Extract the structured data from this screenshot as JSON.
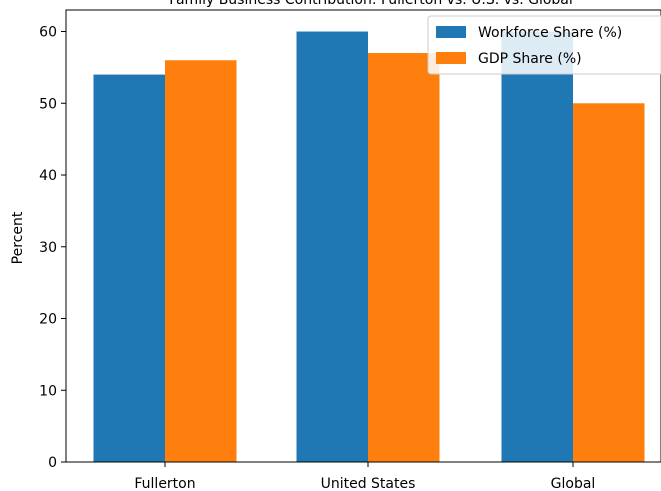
{
  "chart_data": {
    "type": "bar",
    "title": "Family Business Contribution: Fullerton vs. U.S. vs. Global",
    "xlabel": "",
    "ylabel": "Percent",
    "categories": [
      "Fullerton",
      "United States",
      "Global"
    ],
    "series": [
      {
        "name": "Workforce Share (%)",
        "values": [
          54,
          60,
          60
        ]
      },
      {
        "name": "GDP Share (%)",
        "values": [
          56,
          57,
          50
        ]
      }
    ],
    "ylim": [
      0,
      63
    ],
    "yticks": [
      "0",
      "10",
      "20",
      "30",
      "40",
      "50",
      "60"
    ],
    "grid": false,
    "legend_position": "upper right",
    "colors": [
      "#1f77b4",
      "#ff7f0e"
    ]
  }
}
